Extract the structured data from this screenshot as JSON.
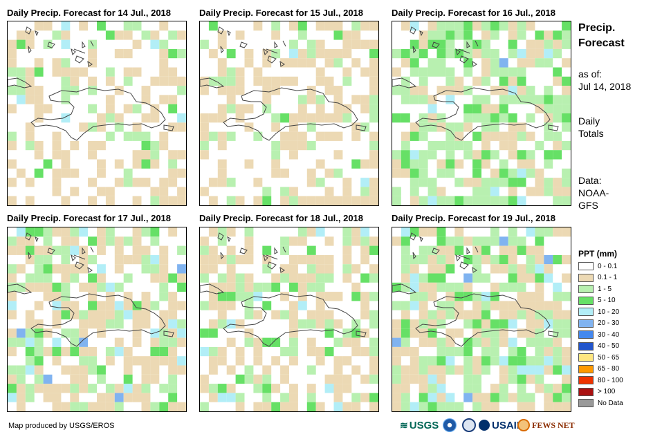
{
  "panels": [
    {
      "title": "Daily Precip. Forecast for 14 Jul., 2018"
    },
    {
      "title": "Daily Precip. Forecast for 15 Jul., 2018"
    },
    {
      "title": "Daily Precip. Forecast for 16 Jul., 2018"
    },
    {
      "title": "Daily Precip. Forecast for 17 Jul., 2018"
    },
    {
      "title": "Daily Precip. Forecast for 18 Jul., 2018"
    },
    {
      "title": "Daily Precip. Forecast for 19 Jul., 2018"
    }
  ],
  "side": {
    "title_line1": "Precip.",
    "title_line2": "Forecast",
    "asof_label": "as of:",
    "asof_date": "Jul 14, 2018",
    "totals_line1": "Daily",
    "totals_line2": "Totals",
    "data_line1": "Data:",
    "data_line2": "NOAA-",
    "data_line3": "GFS"
  },
  "legend": {
    "title": "PPT (mm)",
    "items": [
      {
        "label": "0 - 0.1",
        "color": "#ffffff"
      },
      {
        "label": "0.1 - 1",
        "color": "#ecd9b4"
      },
      {
        "label": "1 - 5",
        "color": "#b8f0b0"
      },
      {
        "label": "5 - 10",
        "color": "#66e066"
      },
      {
        "label": "10 - 20",
        "color": "#b2eef7"
      },
      {
        "label": "20 - 30",
        "color": "#80b3f0"
      },
      {
        "label": "30 - 40",
        "color": "#4488ee"
      },
      {
        "label": "40 - 50",
        "color": "#2255cc"
      },
      {
        "label": "50 - 65",
        "color": "#ffe680"
      },
      {
        "label": "65 - 80",
        "color": "#ff9900"
      },
      {
        "label": "80 - 100",
        "color": "#ee3300"
      },
      {
        "label": "> 100",
        "color": "#aa1111"
      },
      {
        "label": "No Data",
        "color": "#999999"
      }
    ]
  },
  "footer": {
    "credit": "Map produced by USGS/EROS",
    "logos": [
      "USGS",
      "NOAA",
      "USAID",
      "FEWS NET"
    ]
  },
  "colors": {
    "white": "#ffffff",
    "tan": "#ecd9b4",
    "light_green": "#b8f0b0",
    "green": "#66e066",
    "light_blue": "#b2eef7",
    "blue": "#80b3f0",
    "mid_blue": "#4488ee",
    "yellow": "#ffe680"
  }
}
